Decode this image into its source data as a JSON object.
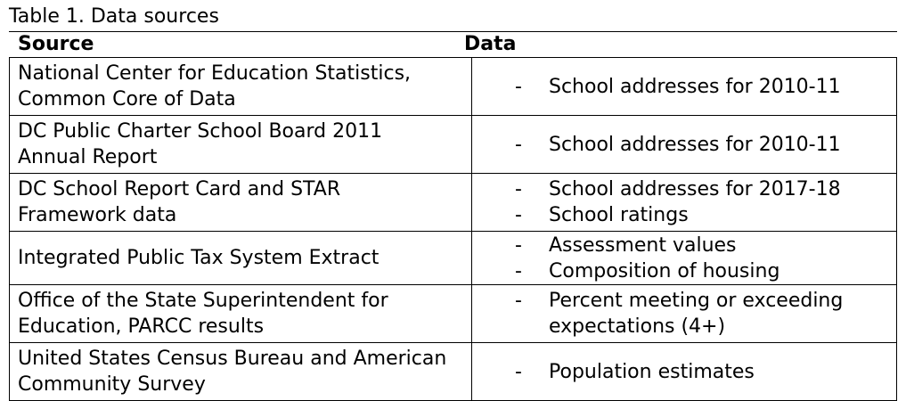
{
  "caption": "Table 1. Data sources",
  "columns": {
    "source": "Source",
    "data": "Data"
  },
  "rows": [
    {
      "source_lines": [
        "National Center for Education Statistics,",
        "Common Core of Data"
      ],
      "items": [
        "School addresses for 2010-11"
      ]
    },
    {
      "source_lines": [
        "DC Public Charter School Board 2011",
        "Annual Report"
      ],
      "items": [
        "School addresses for 2010-11"
      ]
    },
    {
      "source_lines": [
        "DC School Report Card and STAR",
        "Framework data"
      ],
      "items": [
        "School addresses for 2017-18",
        "School ratings"
      ]
    },
    {
      "source_lines": [
        "Integrated Public Tax System Extract"
      ],
      "items": [
        "Assessment values",
        "Composition of housing"
      ]
    },
    {
      "source_lines": [
        "Office of the State Superintendent for",
        "Education, PARCC results"
      ],
      "items": [
        "Percent meeting or exceeding",
        "expectations (4+)"
      ],
      "item_continuation": [
        false,
        true
      ]
    },
    {
      "source_lines": [
        "United States Census Bureau and American",
        "Community Survey"
      ],
      "items": [
        "Population estimates"
      ]
    }
  ],
  "bullet": "-"
}
